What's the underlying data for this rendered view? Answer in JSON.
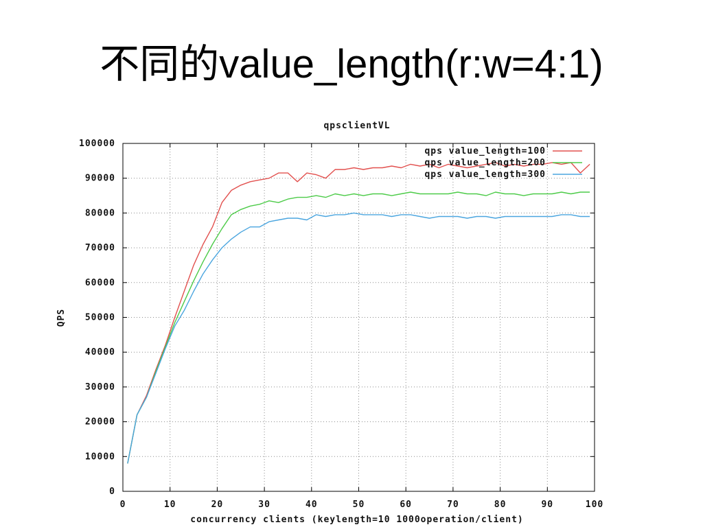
{
  "slide": {
    "title": "不同的value_length(r:w=4:1)"
  },
  "chart_data": {
    "type": "line",
    "title": "qpsclientVL",
    "xlabel": "concurrency clients (keylength=10 1000operation/client)",
    "ylabel": "QPS",
    "xlim": [
      0,
      100
    ],
    "ylim": [
      0,
      100000
    ],
    "xticks": [
      0,
      10,
      20,
      30,
      40,
      50,
      60,
      70,
      80,
      90,
      100
    ],
    "yticks": [
      0,
      10000,
      20000,
      30000,
      40000,
      50000,
      60000,
      70000,
      80000,
      90000,
      100000
    ],
    "grid": true,
    "legend": "top-right",
    "x": [
      1,
      3,
      5,
      7,
      9,
      11,
      13,
      15,
      17,
      19,
      21,
      23,
      25,
      27,
      29,
      31,
      33,
      35,
      37,
      39,
      41,
      43,
      45,
      47,
      49,
      51,
      53,
      55,
      57,
      59,
      61,
      63,
      65,
      67,
      69,
      71,
      73,
      75,
      77,
      79,
      81,
      83,
      85,
      87,
      89,
      91,
      93,
      95,
      97,
      99
    ],
    "series": [
      {
        "name": "qps value_length=100",
        "color": "#e2504e",
        "values": [
          8000,
          22000,
          27500,
          35000,
          42000,
          50000,
          57500,
          65000,
          71000,
          76000,
          83000,
          86500,
          88000,
          89000,
          89500,
          90000,
          91500,
          91500,
          89000,
          91500,
          91000,
          90000,
          92500,
          92500,
          93000,
          92500,
          93000,
          93000,
          93500,
          93000,
          94000,
          93500,
          94000,
          93000,
          94000,
          93500,
          93000,
          93500,
          94000,
          94500,
          93500,
          94000,
          93500,
          94000,
          94000,
          94500,
          94000,
          94500,
          91500,
          94000
        ]
      },
      {
        "name": "qps value_length=200",
        "color": "#4ccb48",
        "values": [
          8000,
          22000,
          27000,
          34500,
          41500,
          48500,
          54500,
          60500,
          66000,
          71000,
          75500,
          79500,
          81000,
          82000,
          82500,
          83500,
          83000,
          84000,
          84500,
          84500,
          85000,
          84500,
          85500,
          85000,
          85500,
          85000,
          85500,
          85500,
          85000,
          85500,
          86000,
          85500,
          85500,
          85500,
          85500,
          86000,
          85500,
          85500,
          85000,
          86000,
          85500,
          85500,
          85000,
          85500,
          85500,
          85500,
          86000,
          85500,
          86000,
          86000
        ]
      },
      {
        "name": "qps value_length=300",
        "color": "#4aa5df",
        "values": [
          8000,
          22000,
          27000,
          34000,
          41000,
          47500,
          52000,
          57500,
          62500,
          66500,
          70000,
          72500,
          74500,
          76000,
          76000,
          77500,
          78000,
          78500,
          78500,
          78000,
          79500,
          79000,
          79500,
          79500,
          80000,
          79500,
          79500,
          79500,
          79000,
          79500,
          79500,
          79000,
          78500,
          79000,
          79000,
          79000,
          78500,
          79000,
          79000,
          78500,
          79000,
          79000,
          79000,
          79000,
          79000,
          79000,
          79500,
          79500,
          79000,
          79000
        ]
      }
    ]
  }
}
